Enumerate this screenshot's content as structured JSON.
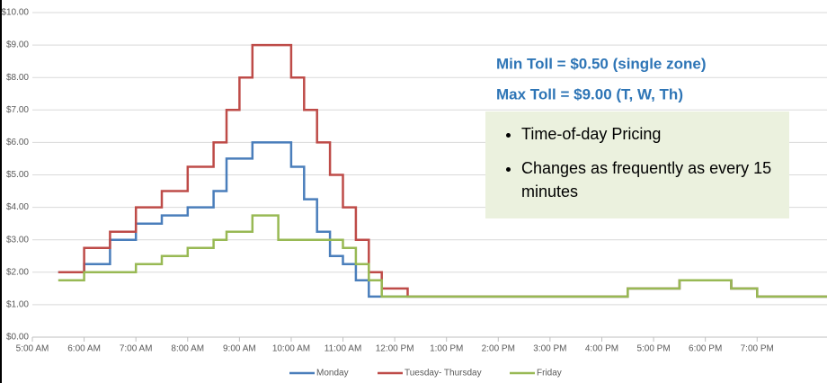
{
  "chart_data": {
    "type": "step-line",
    "annotations": [
      "Min Toll = $0.50 (single zone)",
      "Max Toll = $9.00 (T, W, Th)"
    ],
    "bullets": [
      "Time-of-day Pricing",
      "Changes as frequently as every 15 minutes"
    ],
    "xlim": [
      5,
      20.35
    ],
    "ylim": [
      0,
      10
    ],
    "xticks": [
      {
        "value": 5,
        "label": "5:00 AM"
      },
      {
        "value": 6,
        "label": "6:00 AM"
      },
      {
        "value": 7,
        "label": "7:00 AM"
      },
      {
        "value": 8,
        "label": "8:00 AM"
      },
      {
        "value": 9,
        "label": "9:00 AM"
      },
      {
        "value": 10,
        "label": "10:00 AM"
      },
      {
        "value": 11,
        "label": "11:00 AM"
      },
      {
        "value": 12,
        "label": "12:00 PM"
      },
      {
        "value": 13,
        "label": "1:00 PM"
      },
      {
        "value": 14,
        "label": "2:00 PM"
      },
      {
        "value": 15,
        "label": "3:00 PM"
      },
      {
        "value": 16,
        "label": "4:00 PM"
      },
      {
        "value": 17,
        "label": "5:00 PM"
      },
      {
        "value": 18,
        "label": "6:00 PM"
      },
      {
        "value": 19,
        "label": "7:00 PM"
      }
    ],
    "yticks": [
      {
        "value": 0,
        "label": "$0.00"
      },
      {
        "value": 1,
        "label": "$1.00"
      },
      {
        "value": 2,
        "label": "$2.00"
      },
      {
        "value": 3,
        "label": "$3.00"
      },
      {
        "value": 4,
        "label": "$4.00"
      },
      {
        "value": 5,
        "label": "$5.00"
      },
      {
        "value": 6,
        "label": "$6.00"
      },
      {
        "value": 7,
        "label": "$7.00"
      },
      {
        "value": 8,
        "label": "$8.00"
      },
      {
        "value": 9,
        "label": "$9.00"
      },
      {
        "value": 10,
        "label": "$10.00"
      }
    ],
    "grid": true,
    "series": [
      {
        "name": "Monday",
        "color": "#4a7ebb",
        "x": [
          5.5,
          6,
          6.5,
          7,
          7.5,
          8,
          8.5,
          8.75,
          9.25,
          10,
          10.25,
          10.5,
          10.75,
          11,
          11.25,
          11.5,
          16.5,
          17.5,
          18.5,
          19,
          20.35
        ],
        "values": [
          2,
          2.25,
          3,
          3.5,
          3.75,
          4,
          4.5,
          5.5,
          6,
          5.25,
          4.25,
          3.25,
          2.5,
          2.25,
          1.75,
          1.25,
          1.5,
          1.75,
          1.5,
          1.25,
          1.25
        ]
      },
      {
        "name": "Tuesday- Thursday",
        "color": "#be4b48",
        "x": [
          5.5,
          6,
          6.5,
          7,
          7.5,
          8,
          8.5,
          8.75,
          9,
          9.25,
          10,
          10.25,
          10.5,
          10.75,
          11,
          11.25,
          11.5,
          11.75,
          12.25,
          16.5,
          17.5,
          18.5,
          19,
          20.35
        ],
        "values": [
          2,
          2.75,
          3.25,
          4,
          4.5,
          5.25,
          6,
          7,
          8,
          9,
          8,
          7,
          6,
          5,
          4,
          3,
          2,
          1.5,
          1.25,
          1.5,
          1.75,
          1.5,
          1.25,
          1.25
        ]
      },
      {
        "name": "Friday",
        "color": "#98b954",
        "x": [
          5.5,
          6,
          7,
          7.5,
          8,
          8.5,
          8.75,
          9.25,
          9.75,
          11,
          11.25,
          11.5,
          11.75,
          16.5,
          17.5,
          18.5,
          19,
          20.35
        ],
        "values": [
          1.75,
          2,
          2.25,
          2.5,
          2.75,
          3,
          3.25,
          3.75,
          3,
          2.75,
          2.25,
          1.75,
          1.25,
          1.5,
          1.75,
          1.5,
          1.25,
          1.25
        ]
      }
    ]
  }
}
